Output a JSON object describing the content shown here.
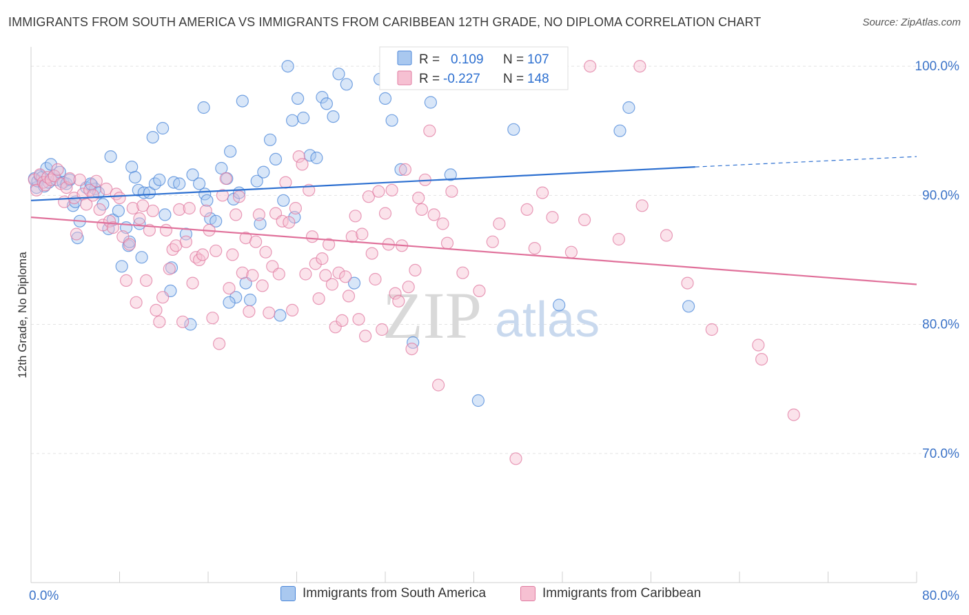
{
  "header": {
    "title": "IMMIGRANTS FROM SOUTH AMERICA VS IMMIGRANTS FROM CARIBBEAN 12TH GRADE, NO DIPLOMA CORRELATION CHART",
    "source": "Source: ZipAtlas.com"
  },
  "watermark": {
    "zip": "ZIP",
    "atlas": "atlas"
  },
  "colors": {
    "blue_fill": "#a9c8ef",
    "blue_stroke": "#4a86d8",
    "blue_line": "#2c6fd0",
    "pink_fill": "#f6c0d2",
    "pink_stroke": "#e07aa0",
    "pink_line": "#e0709a",
    "axis_label": "#3b73c8",
    "grid": "#e3e3e3"
  },
  "stats_legend": {
    "rows": [
      {
        "r_label": "R =",
        "r_value": "0.109",
        "n_label": "N =",
        "n_value": "107"
      },
      {
        "r_label": "R =",
        "r_value": "-0.227",
        "n_label": "N =",
        "n_value": "148"
      }
    ]
  },
  "chart_data": {
    "type": "scatter",
    "title": "IMMIGRANTS FROM SOUTH AMERICA VS IMMIGRANTS FROM CARIBBEAN 12TH GRADE, NO DIPLOMA CORRELATION CHART",
    "xlabel": "",
    "ylabel": "12th Grade, No Diploma",
    "xlim": [
      0,
      80
    ],
    "ylim": [
      60,
      101.5
    ],
    "x_ticks": [
      0,
      8,
      16,
      24,
      32,
      40,
      48,
      56,
      64,
      72,
      80
    ],
    "x_tick_labels": [
      {
        "value": 0,
        "label": "0.0%"
      },
      {
        "value": 80,
        "label": "80.0%"
      }
    ],
    "y_ticks": [
      {
        "value": 100,
        "label": "100.0%"
      },
      {
        "value": 90,
        "label": "90.0%"
      },
      {
        "value": 80,
        "label": "80.0%"
      },
      {
        "value": 70,
        "label": "70.0%"
      }
    ],
    "grid": true,
    "legend_position": "bottom",
    "series": [
      {
        "name": "Immigrants from South America",
        "color": "#4a86d8",
        "R": 0.109,
        "N": 107,
        "trend": {
          "x0": 0,
          "y0": 89.6,
          "x1": 60,
          "y1": 92.2,
          "dash_to_x": 80,
          "dash_to_y": 93.0
        },
        "points": [
          [
            0.3,
            91.3
          ],
          [
            0.5,
            90.6
          ],
          [
            0.6,
            91.1
          ],
          [
            0.8,
            91.5
          ],
          [
            1.0,
            91.4
          ],
          [
            1.2,
            90.7
          ],
          [
            1.4,
            92.1
          ],
          [
            1.6,
            91.0
          ],
          [
            1.8,
            92.4
          ],
          [
            2.1,
            91.5
          ],
          [
            2.3,
            91.2
          ],
          [
            2.6,
            91.8
          ],
          [
            2.9,
            91.0
          ],
          [
            3.2,
            90.9
          ],
          [
            3.5,
            91.2
          ],
          [
            3.8,
            89.2
          ],
          [
            4.0,
            89.5
          ],
          [
            4.2,
            86.7
          ],
          [
            4.4,
            88.0
          ],
          [
            5.0,
            90.6
          ],
          [
            5.5,
            90.8
          ],
          [
            5.8,
            90.5
          ],
          [
            6.1,
            90.2
          ],
          [
            6.5,
            89.3
          ],
          [
            7.0,
            87.4
          ],
          [
            7.2,
            93.0
          ],
          [
            7.4,
            88.1
          ],
          [
            7.9,
            88.8
          ],
          [
            8.2,
            84.5
          ],
          [
            8.6,
            87.5
          ],
          [
            8.8,
            86.1
          ],
          [
            9.1,
            92.2
          ],
          [
            9.4,
            91.4
          ],
          [
            9.7,
            90.4
          ],
          [
            10.0,
            85.2
          ],
          [
            10.2,
            90.2
          ],
          [
            10.7,
            90.2
          ],
          [
            11.2,
            90.9
          ],
          [
            11.6,
            91.2
          ],
          [
            12.1,
            88.5
          ],
          [
            12.6,
            82.6
          ],
          [
            12.9,
            91.0
          ],
          [
            13.4,
            90.9
          ],
          [
            14.0,
            87.0
          ],
          [
            14.6,
            91.6
          ],
          [
            15.2,
            90.9
          ],
          [
            15.7,
            90.1
          ],
          [
            15.9,
            89.6
          ],
          [
            16.2,
            88.2
          ],
          [
            16.7,
            88.0
          ],
          [
            17.2,
            92.1
          ],
          [
            17.7,
            91.3
          ],
          [
            18.0,
            93.4
          ],
          [
            18.3,
            89.7
          ],
          [
            18.8,
            90.2
          ],
          [
            19.4,
            83.2
          ],
          [
            19.8,
            81.9
          ],
          [
            20.4,
            91.1
          ],
          [
            21.0,
            91.8
          ],
          [
            21.6,
            94.3
          ],
          [
            22.1,
            92.8
          ],
          [
            22.8,
            89.6
          ],
          [
            23.2,
            100.0
          ],
          [
            23.6,
            95.8
          ],
          [
            24.1,
            97.5
          ],
          [
            24.6,
            96.0
          ],
          [
            25.2,
            93.1
          ],
          [
            25.8,
            92.9
          ],
          [
            26.3,
            97.6
          ],
          [
            26.7,
            97.1
          ],
          [
            27.3,
            96.1
          ],
          [
            27.8,
            99.4
          ],
          [
            28.5,
            98.6
          ],
          [
            29.2,
            83.2
          ],
          [
            31.5,
            99.0
          ],
          [
            32.0,
            97.5
          ],
          [
            32.6,
            95.8
          ],
          [
            33.4,
            92.0
          ],
          [
            34.5,
            78.6
          ],
          [
            36.1,
            97.2
          ],
          [
            37.9,
            91.6
          ],
          [
            40.4,
            74.1
          ],
          [
            43.6,
            95.1
          ],
          [
            47.7,
            81.5
          ],
          [
            53.2,
            95.0
          ],
          [
            54.0,
            96.8
          ],
          [
            59.4,
            81.4
          ],
          [
            12.7,
            84.4
          ],
          [
            11.0,
            94.5
          ],
          [
            18.5,
            82.1
          ],
          [
            19.1,
            97.3
          ],
          [
            23.8,
            88.3
          ],
          [
            20.7,
            87.8
          ],
          [
            22.5,
            80.7
          ],
          [
            17.9,
            81.7
          ],
          [
            14.4,
            80.0
          ],
          [
            15.6,
            96.8
          ],
          [
            11.9,
            95.2
          ],
          [
            8.9,
            86.4
          ],
          [
            5.4,
            90.9
          ],
          [
            9.8,
            87.8
          ]
        ]
      },
      {
        "name": "Immigrants from Caribbean",
        "color": "#e07aa0",
        "R": -0.227,
        "N": 148,
        "trend": {
          "x0": 0,
          "y0": 88.3,
          "x1": 80,
          "y1": 83.1
        },
        "points": [
          [
            0.3,
            91.2
          ],
          [
            0.5,
            90.4
          ],
          [
            0.8,
            91.6
          ],
          [
            1.1,
            91.0
          ],
          [
            1.3,
            90.8
          ],
          [
            1.5,
            91.4
          ],
          [
            1.8,
            91.2
          ],
          [
            2.1,
            91.5
          ],
          [
            2.4,
            92.0
          ],
          [
            2.7,
            90.9
          ],
          [
            3.0,
            89.5
          ],
          [
            3.2,
            90.6
          ],
          [
            3.5,
            91.3
          ],
          [
            3.9,
            89.8
          ],
          [
            4.1,
            87.0
          ],
          [
            4.4,
            91.2
          ],
          [
            4.7,
            90.1
          ],
          [
            5.0,
            89.3
          ],
          [
            5.3,
            90.4
          ],
          [
            5.6,
            90.0
          ],
          [
            5.9,
            91.1
          ],
          [
            6.2,
            88.9
          ],
          [
            6.5,
            87.7
          ],
          [
            6.8,
            90.5
          ],
          [
            7.1,
            88.0
          ],
          [
            7.4,
            87.5
          ],
          [
            7.7,
            90.1
          ],
          [
            8.0,
            89.8
          ],
          [
            8.3,
            86.8
          ],
          [
            8.6,
            83.4
          ],
          [
            8.9,
            86.2
          ],
          [
            9.2,
            89.0
          ],
          [
            9.5,
            81.7
          ],
          [
            9.8,
            88.2
          ],
          [
            10.1,
            89.2
          ],
          [
            10.4,
            83.4
          ],
          [
            10.7,
            87.3
          ],
          [
            11.0,
            88.8
          ],
          [
            11.3,
            81.1
          ],
          [
            11.6,
            80.2
          ],
          [
            11.9,
            82.1
          ],
          [
            12.2,
            87.3
          ],
          [
            12.5,
            84.3
          ],
          [
            12.8,
            85.8
          ],
          [
            13.1,
            86.1
          ],
          [
            13.4,
            88.9
          ],
          [
            13.7,
            80.2
          ],
          [
            14.0,
            86.4
          ],
          [
            14.3,
            89.0
          ],
          [
            14.6,
            83.2
          ],
          [
            14.9,
            85.2
          ],
          [
            15.2,
            85.0
          ],
          [
            15.5,
            85.4
          ],
          [
            15.8,
            88.8
          ],
          [
            16.1,
            87.3
          ],
          [
            16.4,
            80.5
          ],
          [
            16.7,
            85.7
          ],
          [
            17.0,
            78.5
          ],
          [
            17.3,
            90.0
          ],
          [
            17.6,
            91.3
          ],
          [
            17.9,
            82.8
          ],
          [
            18.2,
            85.4
          ],
          [
            18.5,
            88.5
          ],
          [
            18.8,
            89.9
          ],
          [
            19.1,
            84.0
          ],
          [
            19.4,
            86.7
          ],
          [
            19.7,
            81.0
          ],
          [
            20.0,
            83.8
          ],
          [
            20.3,
            86.4
          ],
          [
            20.6,
            88.5
          ],
          [
            20.9,
            83.0
          ],
          [
            21.2,
            85.6
          ],
          [
            21.5,
            80.9
          ],
          [
            21.8,
            84.5
          ],
          [
            22.1,
            88.6
          ],
          [
            22.4,
            83.9
          ],
          [
            22.7,
            88.0
          ],
          [
            23.0,
            91.0
          ],
          [
            23.3,
            87.9
          ],
          [
            23.6,
            81.1
          ],
          [
            23.9,
            89.0
          ],
          [
            24.2,
            93.0
          ],
          [
            24.5,
            92.4
          ],
          [
            24.8,
            83.9
          ],
          [
            25.1,
            90.4
          ],
          [
            25.4,
            86.8
          ],
          [
            25.7,
            84.7
          ],
          [
            26.0,
            82.0
          ],
          [
            26.3,
            85.1
          ],
          [
            26.6,
            83.8
          ],
          [
            26.9,
            86.2
          ],
          [
            27.2,
            83.1
          ],
          [
            27.5,
            79.8
          ],
          [
            27.8,
            84.0
          ],
          [
            28.1,
            80.3
          ],
          [
            28.4,
            83.7
          ],
          [
            28.7,
            82.2
          ],
          [
            29.0,
            86.8
          ],
          [
            29.3,
            88.4
          ],
          [
            29.6,
            80.4
          ],
          [
            29.9,
            87.0
          ],
          [
            30.2,
            79.1
          ],
          [
            30.5,
            89.9
          ],
          [
            30.8,
            85.5
          ],
          [
            31.1,
            83.5
          ],
          [
            31.4,
            90.3
          ],
          [
            31.7,
            79.6
          ],
          [
            32.0,
            88.6
          ],
          [
            32.3,
            86.2
          ],
          [
            32.6,
            90.4
          ],
          [
            32.9,
            82.4
          ],
          [
            33.2,
            81.8
          ],
          [
            33.5,
            86.1
          ],
          [
            33.8,
            92.0
          ],
          [
            34.1,
            82.9
          ],
          [
            34.4,
            78.1
          ],
          [
            34.7,
            84.2
          ],
          [
            35.0,
            89.8
          ],
          [
            35.3,
            88.9
          ],
          [
            35.6,
            91.2
          ],
          [
            36.0,
            95.0
          ],
          [
            36.4,
            88.5
          ],
          [
            36.8,
            75.3
          ],
          [
            37.2,
            87.8
          ],
          [
            37.6,
            86.3
          ],
          [
            38.0,
            90.3
          ],
          [
            39.0,
            84.0
          ],
          [
            40.5,
            82.6
          ],
          [
            41.7,
            86.4
          ],
          [
            42.3,
            87.8
          ],
          [
            43.8,
            69.6
          ],
          [
            44.8,
            88.9
          ],
          [
            45.5,
            85.9
          ],
          [
            46.2,
            90.2
          ],
          [
            47.1,
            88.3
          ],
          [
            48.8,
            85.6
          ],
          [
            50.0,
            88.1
          ],
          [
            50.5,
            100.0
          ],
          [
            53.1,
            86.6
          ],
          [
            55.2,
            89.2
          ],
          [
            57.4,
            86.9
          ],
          [
            55.0,
            100.0
          ],
          [
            61.5,
            79.6
          ],
          [
            65.7,
            78.4
          ],
          [
            66.0,
            77.3
          ],
          [
            68.9,
            73.0
          ],
          [
            59.3,
            83.2
          ]
        ]
      }
    ]
  }
}
